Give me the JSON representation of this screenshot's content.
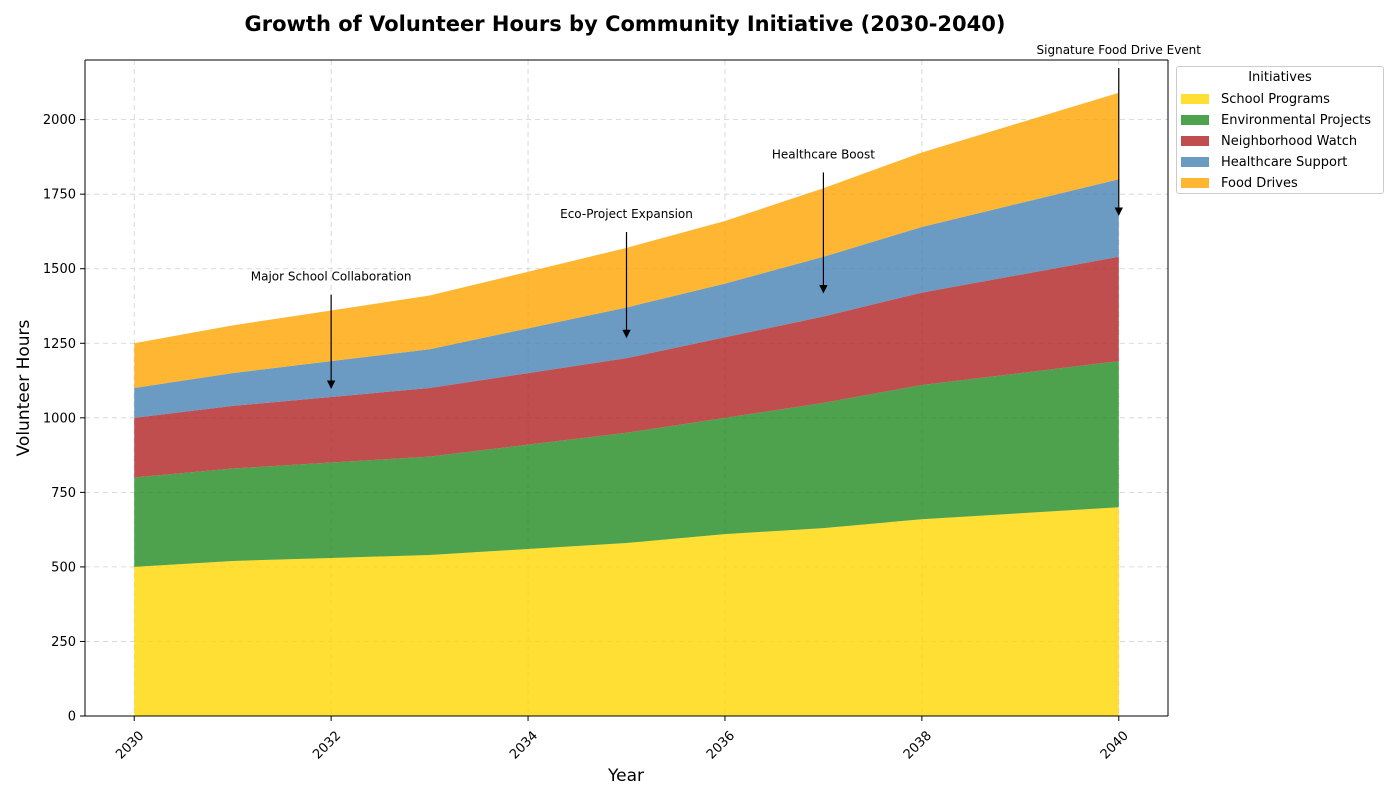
{
  "chart_data": {
    "type": "area",
    "stacked": true,
    "title": "Growth of Volunteer Hours by Community Initiative (2030-2040)",
    "xlabel": "Year",
    "ylabel": "Volunteer Hours",
    "xlim": [
      2029.5,
      2040.5
    ],
    "ylim": [
      0,
      2200
    ],
    "x": [
      2030,
      2031,
      2032,
      2033,
      2034,
      2035,
      2036,
      2037,
      2038,
      2039,
      2040
    ],
    "x_ticks": [
      "2030",
      "2032",
      "2034",
      "2036",
      "2038",
      "2040"
    ],
    "y_ticks": [
      "0",
      "250",
      "500",
      "750",
      "1000",
      "1250",
      "1500",
      "1750",
      "2000"
    ],
    "grid": true,
    "legend": {
      "title": "Initiatives",
      "placement": "outside-right-top"
    },
    "series": [
      {
        "name": "School Programs",
        "color": "#FFD700",
        "values": [
          500,
          520,
          530,
          540,
          560,
          580,
          610,
          630,
          660,
          680,
          700
        ]
      },
      {
        "name": "Environmental Projects",
        "color": "#228B22",
        "values": [
          300,
          310,
          320,
          330,
          350,
          370,
          390,
          420,
          450,
          470,
          490
        ]
      },
      {
        "name": "Neighborhood Watch",
        "color": "#B22222",
        "values": [
          200,
          210,
          220,
          230,
          240,
          250,
          270,
          290,
          310,
          330,
          350
        ]
      },
      {
        "name": "Healthcare Support",
        "color": "#4682B4",
        "values": [
          100,
          110,
          120,
          130,
          150,
          170,
          180,
          200,
          220,
          240,
          260
        ]
      },
      {
        "name": "Food Drives",
        "color": "#FFA500",
        "values": [
          150,
          160,
          170,
          180,
          190,
          200,
          210,
          230,
          250,
          270,
          290
        ]
      }
    ],
    "annotations": [
      {
        "text": "Major School Collaboration",
        "x": 2032,
        "y": 1100,
        "text_y": 1460
      },
      {
        "text": "Eco-Project Expansion",
        "x": 2035,
        "y": 1270,
        "text_y": 1670
      },
      {
        "text": "Healthcare Boost",
        "x": 2037,
        "y": 1420,
        "text_y": 1870
      },
      {
        "text": "Signature Food Drive Event",
        "x": 2040,
        "y": 1680,
        "text_y": 2220
      }
    ]
  }
}
